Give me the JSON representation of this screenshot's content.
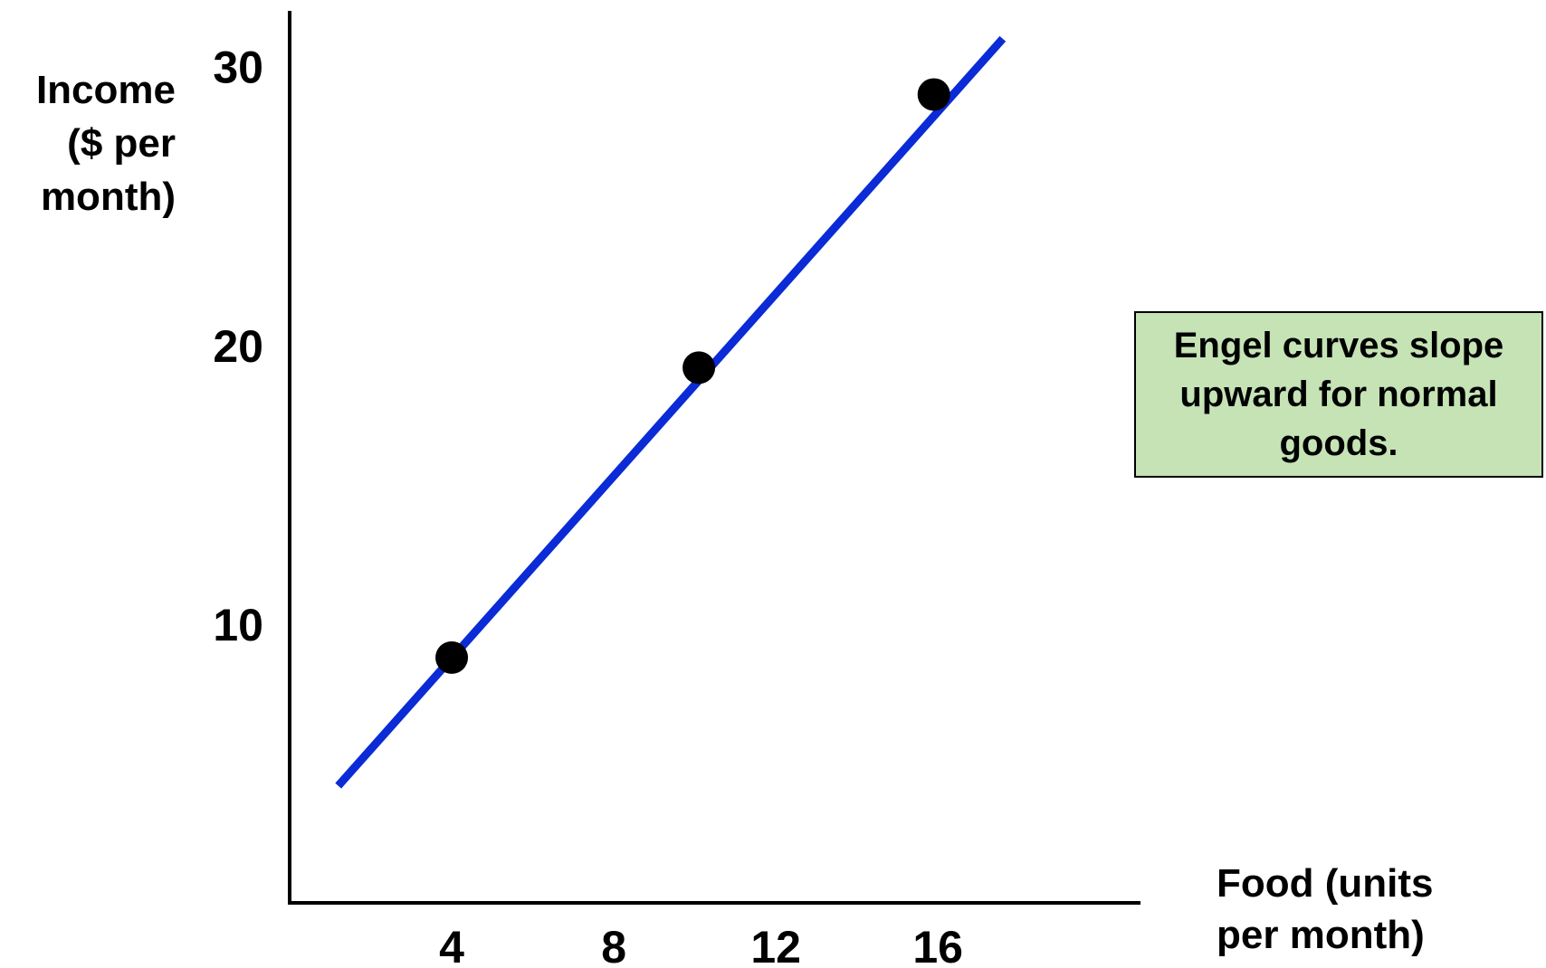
{
  "chart_data": {
    "type": "line",
    "ylabel_lines": [
      "Income",
      "($ per",
      "month)"
    ],
    "xlabel_lines": [
      "Food (units",
      "per month)"
    ],
    "x_ticks": [
      4,
      8,
      12,
      16
    ],
    "y_ticks": [
      10,
      20,
      30
    ],
    "xlim": [
      0,
      21
    ],
    "ylim": [
      0,
      32
    ],
    "grid": false,
    "series": [
      {
        "color": "#0a2bd6",
        "line": {
          "x": [
            1.2,
            17.6
          ],
          "y": [
            4.2,
            31.0
          ]
        },
        "points": [
          {
            "x": 4,
            "y": 8.8
          },
          {
            "x": 10.1,
            "y": 19.2
          },
          {
            "x": 15.9,
            "y": 29.0
          }
        ]
      }
    ],
    "annotation": "Engel curves slope upward for normal goods.",
    "annotation_color": "#c5e3b5"
  }
}
